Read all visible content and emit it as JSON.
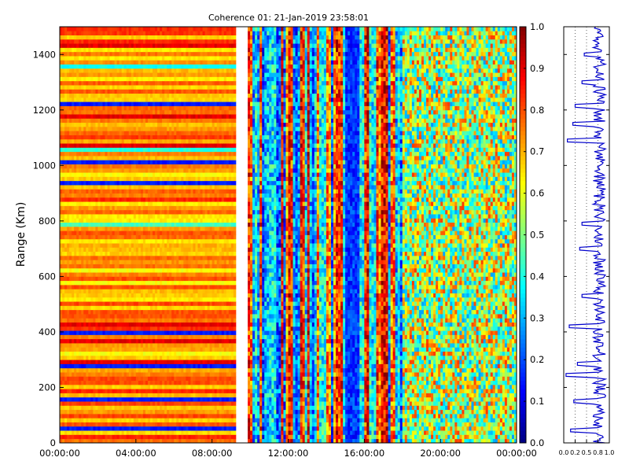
{
  "chart_data": [
    {
      "type": "heatmap",
      "title": "Coherence 01: 21-Jan-2019 23:58:01",
      "xlabel": "",
      "ylabel": "Range (Km)",
      "x_tick_labels": [
        "00:00:00",
        "04:00:00",
        "08:00:00",
        "12:00:00",
        "16:00:00",
        "20:00:00",
        "00:00:00"
      ],
      "x_ticks_hours": [
        0,
        4,
        8,
        12,
        16,
        20,
        24
      ],
      "xlim_hours": [
        0,
        24
      ],
      "y_ticks": [
        0,
        200,
        400,
        600,
        800,
        1000,
        1200,
        1400
      ],
      "ylim": [
        0,
        1500
      ],
      "colormap": "jet",
      "value_range": [
        0.0,
        1.0
      ],
      "colorbar_ticks": [
        "0.0",
        "0.1",
        "0.2",
        "0.3",
        "0.4",
        "0.5",
        "0.6",
        "0.7",
        "0.8",
        "0.9",
        "1.0"
      ],
      "regions": [
        {
          "start_hour": 0.0,
          "end_hour": 9.2,
          "pattern": "horizontal bands",
          "typical_value": 0.72
        },
        {
          "start_hour": 9.2,
          "end_hour": 9.9,
          "pattern": "no data",
          "typical_value": null
        },
        {
          "start_hour": 9.9,
          "end_hour": 15.0,
          "pattern": "vertical stripes",
          "typical_value": 0.4
        },
        {
          "start_hour": 15.0,
          "end_hour": 15.7,
          "pattern": "low coherence",
          "typical_value": 0.15
        },
        {
          "start_hour": 15.7,
          "end_hour": 18.0,
          "pattern": "vertical stripes",
          "typical_value": 0.5
        },
        {
          "start_hour": 18.0,
          "end_hour": 24.0,
          "pattern": "noisy",
          "typical_value": 0.55
        }
      ],
      "dips_km": [
        45,
        150,
        280,
        400,
        930,
        1010,
        1215
      ]
    },
    {
      "type": "line",
      "title": "",
      "xlabel": "",
      "ylabel": "",
      "x_tick_labels": [
        "0.0",
        "0.2",
        "0.5",
        "0.8",
        "1.0"
      ],
      "x_ticks": [
        0.0,
        0.25,
        0.5,
        0.75,
        1.0
      ],
      "xlim": [
        0,
        1
      ],
      "ylim": [
        0,
        1500
      ],
      "grid_x": "dotted",
      "line_color": "#0000cc",
      "baseline": 0.78,
      "dips_km": [
        [
          45,
          0.15
        ],
        [
          150,
          0.22
        ],
        [
          245,
          0.05
        ],
        [
          285,
          0.3
        ],
        [
          420,
          0.12
        ],
        [
          530,
          0.4
        ],
        [
          700,
          0.35
        ],
        [
          790,
          0.4
        ],
        [
          1090,
          0.08
        ],
        [
          1150,
          0.2
        ],
        [
          1215,
          0.25
        ],
        [
          1300,
          0.4
        ],
        [
          1400,
          0.45
        ]
      ]
    }
  ]
}
